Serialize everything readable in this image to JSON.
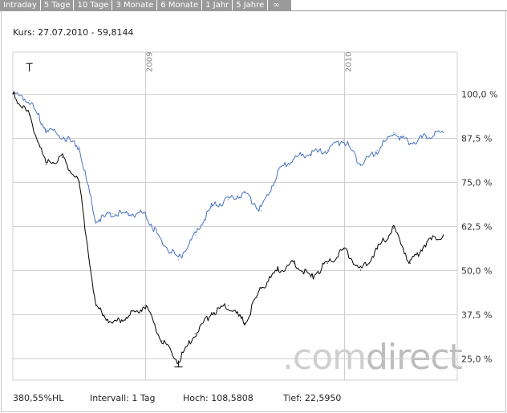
{
  "tabs": [
    "Intraday",
    "5 Tage",
    "10 Tage",
    "3 Monate",
    "6 Monate",
    "1 Jahr",
    "5 Jahre",
    "∞"
  ],
  "kurs": "Kurs: 27.07.2010 - 59,8144",
  "footer": {
    "performance": "380,55%HL",
    "interval": "Intervall: 1 Tag",
    "high": "Hoch: 108,5808",
    "low": "Tief: 22,5950"
  },
  "watermark": {
    "dot": ".",
    "light": "com",
    "dark": "direct"
  },
  "colors": {
    "blue_series": "#4a72c0",
    "black_series": "#000000",
    "grid": "#cfcfcf",
    "tab_bg": "#9a9a9a"
  },
  "chart_data": {
    "type": "line",
    "ylim": [
      20,
      110
    ],
    "y_ticks": [
      25,
      37.5,
      50,
      62.5,
      75,
      87.5,
      100
    ],
    "y_tick_labels": [
      "25,0 %",
      "37,5 %",
      "50,0 %",
      "62,5 %",
      "75,0 %",
      "87,5 %",
      "100,0 %"
    ],
    "x_range": [
      "2008-05",
      "2010-07-27"
    ],
    "x_year_labels": [
      {
        "label": "2009",
        "date": "2009-01"
      },
      {
        "label": "2010",
        "date": "2010-01"
      }
    ],
    "grid": true,
    "series": [
      {
        "color": "#4a72c0",
        "x": [
          "2008-05",
          "2008-06",
          "2008-07",
          "2008-08",
          "2008-09",
          "2008-10",
          "2008-11",
          "2008-12",
          "2009-01",
          "2009-02",
          "2009-03",
          "2009-04",
          "2009-05",
          "2009-06",
          "2009-07",
          "2009-08",
          "2009-09",
          "2009-10",
          "2009-11",
          "2009-12",
          "2010-01",
          "2010-02",
          "2010-03",
          "2010-04",
          "2010-05",
          "2010-06",
          "2010-07"
        ],
        "values": [
          100,
          98,
          90,
          88,
          85,
          64,
          66,
          66,
          66,
          58,
          53,
          60,
          68,
          70,
          72,
          67,
          78,
          82,
          83,
          84,
          87,
          80,
          84,
          89,
          86,
          88,
          89
        ]
      },
      {
        "color": "#000000",
        "x": [
          "2008-05",
          "2008-06",
          "2008-07",
          "2008-08",
          "2008-09",
          "2008-10",
          "2008-11",
          "2008-12",
          "2009-01",
          "2009-02",
          "2009-03",
          "2009-04",
          "2009-05",
          "2009-06",
          "2009-07",
          "2009-08",
          "2009-09",
          "2009-10",
          "2009-11",
          "2009-12",
          "2010-01",
          "2010-02",
          "2010-03",
          "2010-04",
          "2010-05",
          "2010-06",
          "2010-07"
        ],
        "values": [
          100,
          94,
          80,
          82,
          75,
          40,
          35,
          37,
          40,
          30,
          24,
          32,
          38,
          40,
          35,
          45,
          50,
          52,
          48,
          52,
          56,
          50,
          56,
          62,
          52,
          58,
          60
        ]
      }
    ]
  }
}
